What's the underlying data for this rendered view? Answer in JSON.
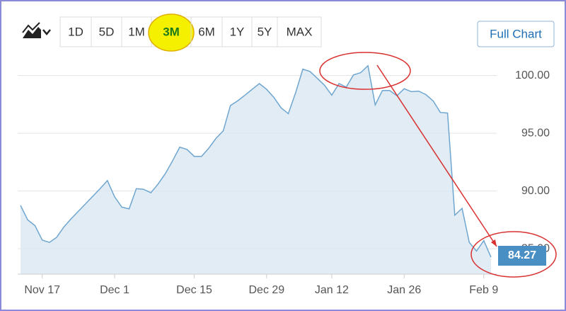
{
  "range_buttons": [
    "1D",
    "5D",
    "1M",
    "3M",
    "6M",
    "1Y",
    "5Y",
    "MAX"
  ],
  "full_chart_button": "Full Chart",
  "chart_data": {
    "type": "area",
    "categories": [
      null,
      null,
      null,
      "Nov 17",
      null,
      null,
      null,
      null,
      null,
      null,
      null,
      null,
      null,
      "Dec 1",
      null,
      null,
      null,
      null,
      null,
      null,
      null,
      null,
      null,
      null,
      "Dec 15",
      null,
      null,
      null,
      null,
      null,
      null,
      null,
      null,
      null,
      "Dec 29",
      null,
      null,
      null,
      null,
      null,
      null,
      null,
      null,
      "Jan 12",
      null,
      null,
      null,
      null,
      null,
      null,
      null,
      null,
      null,
      "Jan 26",
      null,
      null,
      null,
      null,
      null,
      null,
      null,
      null,
      null,
      null,
      "Feb 9",
      null
    ],
    "values": [
      88.75,
      87.5,
      87.0,
      85.75,
      85.55,
      86.0,
      86.9,
      87.6,
      88.25,
      88.9,
      89.55,
      90.2,
      90.9,
      89.5,
      88.6,
      88.45,
      90.2,
      90.15,
      89.85,
      90.6,
      91.5,
      92.6,
      93.8,
      93.6,
      93.0,
      93.0,
      93.7,
      94.55,
      95.2,
      97.4,
      97.8,
      98.3,
      98.8,
      99.3,
      98.8,
      98.1,
      97.2,
      96.7,
      98.5,
      100.55,
      100.35,
      99.75,
      99.15,
      98.3,
      99.3,
      99.0,
      100.05,
      100.25,
      100.85,
      97.45,
      98.7,
      98.7,
      98.25,
      98.85,
      98.6,
      98.65,
      98.35,
      97.8,
      96.8,
      96.75,
      87.9,
      88.5,
      85.55,
      84.8,
      85.7,
      84.27
    ],
    "color": "#6fa6cf",
    "fill_color": "#dce9f3",
    "ylim": [
      82.8,
      101.2
    ],
    "yticks": [
      {
        "value": 85,
        "label": "85.00"
      },
      {
        "value": 90,
        "label": "90.00"
      },
      {
        "value": 95,
        "label": "95.00"
      },
      {
        "value": 100,
        "label": "100.00"
      }
    ],
    "grid": true
  }
}
